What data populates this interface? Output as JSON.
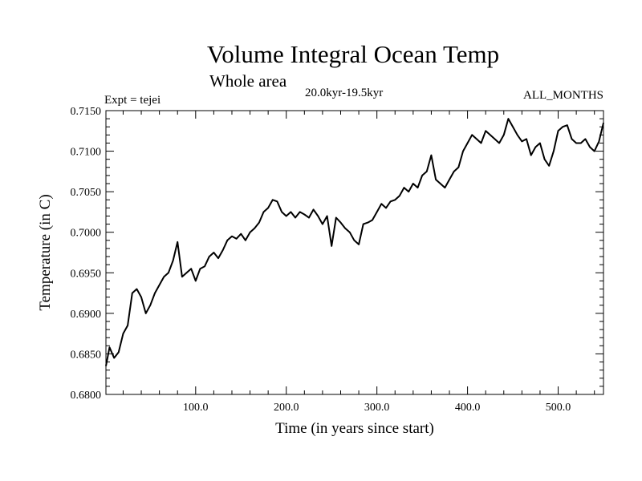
{
  "chart_data": {
    "type": "line",
    "title": "Volume Integral Ocean Temp",
    "subtitle": "Whole area",
    "period": "20.0kyr-19.5kyr",
    "experiment": "Expt = tejei",
    "months": "ALL_MONTHS",
    "xlabel": "Time (in years since start)",
    "ylabel": "Temperature (in C)",
    "xlim": [
      1,
      550
    ],
    "ylim": [
      0.68,
      0.715
    ],
    "xticks": [
      100,
      200,
      300,
      400,
      500
    ],
    "xtick_labels": [
      "100.0",
      "200.0",
      "300.0",
      "400.0",
      "500.0"
    ],
    "yticks": [
      0.68,
      0.685,
      0.69,
      0.695,
      0.7,
      0.705,
      0.71,
      0.715
    ],
    "ytick_labels": [
      "0.6800",
      "0.6850",
      "0.6900",
      "0.6950",
      "0.7000",
      "0.7050",
      "0.7100",
      "0.7150"
    ],
    "series": [
      {
        "name": "Volume Integral Ocean Temp",
        "x": [
          1,
          5,
          10,
          15,
          20,
          25,
          30,
          35,
          40,
          45,
          50,
          55,
          60,
          65,
          70,
          75,
          80,
          85,
          90,
          95,
          100,
          105,
          110,
          115,
          120,
          125,
          130,
          135,
          140,
          145,
          150,
          155,
          160,
          165,
          170,
          175,
          180,
          185,
          190,
          195,
          200,
          205,
          210,
          215,
          220,
          225,
          230,
          235,
          240,
          245,
          250,
          255,
          260,
          265,
          270,
          275,
          280,
          285,
          290,
          295,
          300,
          305,
          310,
          315,
          320,
          325,
          330,
          335,
          340,
          345,
          350,
          355,
          360,
          365,
          370,
          375,
          380,
          385,
          390,
          395,
          400,
          405,
          410,
          415,
          420,
          425,
          430,
          435,
          440,
          445,
          450,
          455,
          460,
          465,
          470,
          475,
          480,
          485,
          490,
          495,
          500,
          505,
          510,
          515,
          520,
          525,
          530,
          535,
          540,
          545,
          550
        ],
        "values": [
          0.6835,
          0.6858,
          0.6845,
          0.6852,
          0.6875,
          0.6885,
          0.6925,
          0.693,
          0.692,
          0.69,
          0.691,
          0.6925,
          0.6935,
          0.6945,
          0.695,
          0.6965,
          0.6988,
          0.6945,
          0.695,
          0.6955,
          0.694,
          0.6955,
          0.6958,
          0.697,
          0.6975,
          0.6968,
          0.6978,
          0.699,
          0.6995,
          0.6992,
          0.6998,
          0.699,
          0.7,
          0.7005,
          0.7012,
          0.7025,
          0.703,
          0.704,
          0.7038,
          0.7025,
          0.702,
          0.7025,
          0.7018,
          0.7025,
          0.7022,
          0.7018,
          0.7028,
          0.702,
          0.701,
          0.702,
          0.6983,
          0.7018,
          0.7012,
          0.7005,
          0.7,
          0.699,
          0.6985,
          0.701,
          0.7012,
          0.7015,
          0.7025,
          0.7035,
          0.703,
          0.7038,
          0.704,
          0.7045,
          0.7055,
          0.705,
          0.706,
          0.7055,
          0.707,
          0.7075,
          0.7095,
          0.7065,
          0.706,
          0.7055,
          0.7065,
          0.7075,
          0.708,
          0.71,
          0.711,
          0.712,
          0.7115,
          0.711,
          0.7125,
          0.712,
          0.7115,
          0.711,
          0.712,
          0.714,
          0.713,
          0.712,
          0.7112,
          0.7115,
          0.7095,
          0.7105,
          0.711,
          0.709,
          0.7082,
          0.71,
          0.7125,
          0.713,
          0.7132,
          0.7115,
          0.711,
          0.711,
          0.7115,
          0.7105,
          0.71,
          0.7112,
          0.7135
        ]
      }
    ]
  }
}
